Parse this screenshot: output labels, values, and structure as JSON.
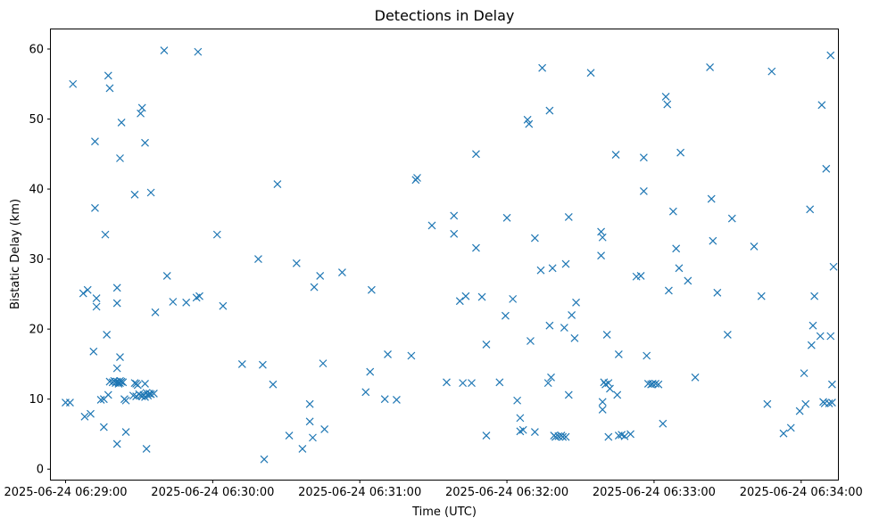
{
  "chart_data": {
    "type": "scatter",
    "title": "Detections in Delay",
    "xlabel": "Time (UTC)",
    "ylabel": "Bistatic Delay (km)",
    "xlim": [
      -0.1,
      5.25
    ],
    "ylim": [
      -1.5,
      62.8
    ],
    "x_unit": "minutes since 2025-06-24 06:29:00 UTC",
    "x_ticks": [
      {
        "value": 0,
        "label": "2025-06-24 06:29:00"
      },
      {
        "value": 1,
        "label": "2025-06-24 06:30:00"
      },
      {
        "value": 2,
        "label": "2025-06-24 06:31:00"
      },
      {
        "value": 3,
        "label": "2025-06-24 06:32:00"
      },
      {
        "value": 4,
        "label": "2025-06-24 06:33:00"
      },
      {
        "value": 5,
        "label": "2025-06-24 06:34:00"
      }
    ],
    "y_ticks": [
      {
        "value": 0,
        "label": "0"
      },
      {
        "value": 10,
        "label": "10"
      },
      {
        "value": 20,
        "label": "20"
      },
      {
        "value": 30,
        "label": "30"
      },
      {
        "value": 40,
        "label": "40"
      },
      {
        "value": 50,
        "label": "50"
      },
      {
        "value": 60,
        "label": "60"
      }
    ],
    "marker": "x",
    "color": "#1f77b4",
    "grid": false,
    "legend": false,
    "points": [
      [
        0.0,
        9.5
      ],
      [
        0.03,
        9.5
      ],
      [
        0.05,
        55.0
      ],
      [
        0.12,
        25.1
      ],
      [
        0.15,
        25.6
      ],
      [
        0.13,
        7.5
      ],
      [
        0.17,
        7.9
      ],
      [
        0.19,
        16.8
      ],
      [
        0.2,
        46.8
      ],
      [
        0.2,
        37.3
      ],
      [
        0.21,
        24.4
      ],
      [
        0.21,
        23.2
      ],
      [
        0.24,
        9.9
      ],
      [
        0.26,
        10.0
      ],
      [
        0.26,
        6.0
      ],
      [
        0.27,
        33.5
      ],
      [
        0.28,
        19.2
      ],
      [
        0.29,
        56.2
      ],
      [
        0.3,
        54.4
      ],
      [
        0.29,
        10.6
      ],
      [
        0.3,
        12.5
      ],
      [
        0.32,
        12.4
      ],
      [
        0.33,
        12.6
      ],
      [
        0.34,
        12.3
      ],
      [
        0.35,
        12.5
      ],
      [
        0.36,
        12.4
      ],
      [
        0.36,
        12.2
      ],
      [
        0.37,
        12.6
      ],
      [
        0.37,
        12.3
      ],
      [
        0.38,
        12.5
      ],
      [
        0.39,
        12.4
      ],
      [
        0.35,
        25.9
      ],
      [
        0.35,
        23.7
      ],
      [
        0.35,
        14.4
      ],
      [
        0.35,
        3.6
      ],
      [
        0.37,
        16.0
      ],
      [
        0.37,
        44.4
      ],
      [
        0.38,
        49.5
      ],
      [
        0.4,
        10.0
      ],
      [
        0.41,
        9.8
      ],
      [
        0.41,
        5.3
      ],
      [
        0.46,
        10.5
      ],
      [
        0.47,
        12.3
      ],
      [
        0.48,
        12.2
      ],
      [
        0.48,
        10.4
      ],
      [
        0.49,
        12.0
      ],
      [
        0.5,
        10.7
      ],
      [
        0.51,
        10.5
      ],
      [
        0.52,
        10.4
      ],
      [
        0.53,
        10.6
      ],
      [
        0.54,
        10.3
      ],
      [
        0.55,
        10.9
      ],
      [
        0.54,
        12.2
      ],
      [
        0.56,
        10.5
      ],
      [
        0.57,
        10.8
      ],
      [
        0.58,
        10.7
      ],
      [
        0.6,
        10.8
      ],
      [
        0.47,
        39.2
      ],
      [
        0.51,
        50.8
      ],
      [
        0.52,
        51.6
      ],
      [
        0.54,
        46.6
      ],
      [
        0.58,
        39.5
      ],
      [
        0.55,
        2.9
      ],
      [
        0.61,
        22.4
      ],
      [
        0.67,
        59.8
      ],
      [
        0.69,
        27.6
      ],
      [
        0.73,
        23.9
      ],
      [
        0.82,
        23.8
      ],
      [
        0.89,
        24.5
      ],
      [
        0.91,
        24.7
      ],
      [
        0.9,
        59.6
      ],
      [
        1.03,
        33.5
      ],
      [
        1.07,
        23.3
      ],
      [
        1.2,
        15.0
      ],
      [
        1.31,
        30.0
      ],
      [
        1.34,
        14.9
      ],
      [
        1.35,
        1.4
      ],
      [
        1.41,
        12.1
      ],
      [
        1.44,
        40.7
      ],
      [
        1.52,
        4.8
      ],
      [
        1.57,
        29.4
      ],
      [
        1.61,
        2.9
      ],
      [
        1.66,
        9.3
      ],
      [
        1.66,
        6.8
      ],
      [
        1.68,
        4.5
      ],
      [
        1.69,
        26.0
      ],
      [
        1.73,
        27.6
      ],
      [
        1.75,
        15.1
      ],
      [
        1.76,
        5.7
      ],
      [
        1.88,
        28.1
      ],
      [
        2.04,
        11.0
      ],
      [
        2.07,
        13.9
      ],
      [
        2.08,
        25.6
      ],
      [
        2.17,
        10.0
      ],
      [
        2.19,
        16.4
      ],
      [
        2.25,
        9.9
      ],
      [
        2.35,
        16.2
      ],
      [
        2.38,
        41.3
      ],
      [
        2.39,
        41.6
      ],
      [
        2.49,
        34.8
      ],
      [
        2.59,
        12.4
      ],
      [
        2.64,
        36.2
      ],
      [
        2.64,
        33.6
      ],
      [
        2.68,
        24.0
      ],
      [
        2.72,
        24.7
      ],
      [
        2.7,
        12.3
      ],
      [
        2.76,
        12.3
      ],
      [
        2.79,
        31.6
      ],
      [
        2.79,
        45.0
      ],
      [
        2.83,
        24.6
      ],
      [
        2.86,
        17.8
      ],
      [
        2.86,
        4.8
      ],
      [
        2.95,
        12.4
      ],
      [
        2.99,
        21.9
      ],
      [
        3.0,
        35.9
      ],
      [
        3.04,
        24.3
      ],
      [
        3.07,
        9.8
      ],
      [
        3.09,
        7.3
      ],
      [
        3.09,
        5.4
      ],
      [
        3.11,
        5.6
      ],
      [
        3.14,
        49.9
      ],
      [
        3.15,
        49.3
      ],
      [
        3.16,
        18.3
      ],
      [
        3.19,
        33.0
      ],
      [
        3.19,
        5.3
      ],
      [
        3.23,
        28.4
      ],
      [
        3.24,
        57.3
      ],
      [
        3.28,
        12.3
      ],
      [
        3.29,
        20.5
      ],
      [
        3.29,
        51.2
      ],
      [
        3.3,
        13.1
      ],
      [
        3.31,
        28.7
      ],
      [
        3.32,
        4.8
      ],
      [
        3.33,
        4.6
      ],
      [
        3.35,
        4.7
      ],
      [
        3.37,
        4.8
      ],
      [
        3.38,
        4.6
      ],
      [
        3.39,
        20.2
      ],
      [
        3.4,
        29.3
      ],
      [
        3.4,
        4.6
      ],
      [
        3.42,
        10.6
      ],
      [
        3.42,
        36.0
      ],
      [
        3.44,
        22.0
      ],
      [
        3.46,
        18.7
      ],
      [
        3.47,
        23.8
      ],
      [
        3.57,
        56.6
      ],
      [
        3.64,
        33.9
      ],
      [
        3.64,
        30.5
      ],
      [
        3.65,
        33.1
      ],
      [
        3.65,
        9.6
      ],
      [
        3.65,
        8.5
      ],
      [
        3.66,
        12.4
      ],
      [
        3.67,
        12.1
      ],
      [
        3.68,
        19.2
      ],
      [
        3.69,
        12.3
      ],
      [
        3.7,
        11.5
      ],
      [
        3.69,
        4.6
      ],
      [
        3.74,
        44.9
      ],
      [
        3.76,
        16.4
      ],
      [
        3.75,
        10.6
      ],
      [
        3.76,
        4.8
      ],
      [
        3.78,
        4.9
      ],
      [
        3.8,
        4.7
      ],
      [
        3.84,
        5.0
      ],
      [
        3.88,
        27.5
      ],
      [
        3.91,
        27.6
      ],
      [
        3.93,
        39.7
      ],
      [
        3.93,
        44.5
      ],
      [
        3.95,
        16.2
      ],
      [
        3.96,
        12.2
      ],
      [
        3.98,
        12.1
      ],
      [
        3.99,
        12.2
      ],
      [
        4.01,
        12.2
      ],
      [
        4.03,
        12.1
      ],
      [
        4.06,
        6.5
      ],
      [
        4.08,
        53.2
      ],
      [
        4.09,
        52.1
      ],
      [
        4.1,
        25.5
      ],
      [
        4.13,
        36.8
      ],
      [
        4.15,
        31.5
      ],
      [
        4.17,
        28.7
      ],
      [
        4.18,
        45.2
      ],
      [
        4.23,
        26.9
      ],
      [
        4.28,
        13.1
      ],
      [
        4.38,
        57.4
      ],
      [
        4.39,
        38.6
      ],
      [
        4.4,
        32.6
      ],
      [
        4.43,
        25.2
      ],
      [
        4.5,
        19.2
      ],
      [
        4.53,
        35.8
      ],
      [
        4.68,
        31.8
      ],
      [
        4.73,
        24.7
      ],
      [
        4.77,
        9.3
      ],
      [
        4.8,
        56.8
      ],
      [
        4.88,
        5.1
      ],
      [
        4.93,
        5.9
      ],
      [
        4.99,
        8.3
      ],
      [
        5.02,
        13.7
      ],
      [
        5.03,
        9.3
      ],
      [
        5.06,
        37.1
      ],
      [
        5.07,
        17.7
      ],
      [
        5.08,
        20.5
      ],
      [
        5.09,
        24.7
      ],
      [
        5.13,
        19.0
      ],
      [
        5.14,
        52.0
      ],
      [
        5.15,
        9.6
      ],
      [
        5.16,
        9.4
      ],
      [
        5.17,
        42.9
      ],
      [
        5.19,
        9.4
      ],
      [
        5.2,
        59.1
      ],
      [
        5.2,
        19.0
      ],
      [
        5.21,
        12.1
      ],
      [
        5.22,
        28.9
      ],
      [
        5.21,
        9.5
      ]
    ]
  }
}
